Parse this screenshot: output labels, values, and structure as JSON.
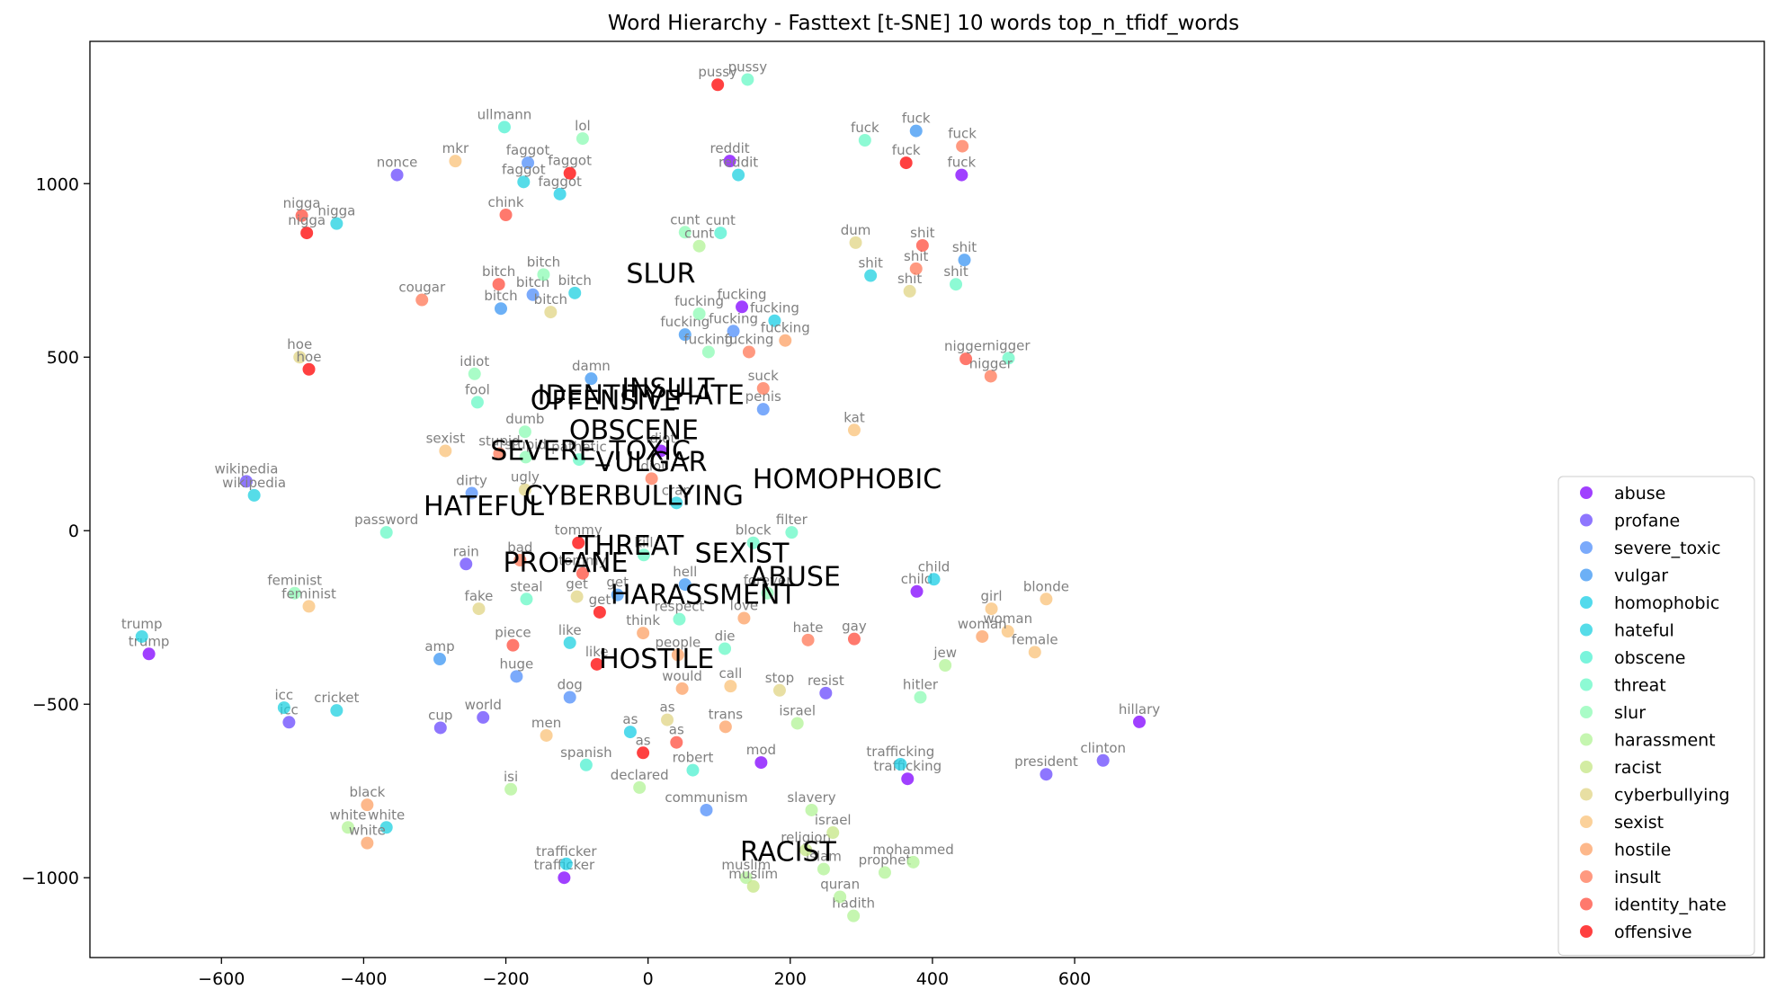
{
  "chart_data": {
    "type": "scatter",
    "title": "Word Hierarchy - Fasttext [t-SNE] 10 words top_n_tfidf_words",
    "xlabel": "",
    "ylabel": "",
    "xlim": [
      -785,
      1570
    ],
    "ylim": [
      -1230,
      1410
    ],
    "x_ticks": [
      -600,
      -400,
      -200,
      0,
      200,
      400,
      600
    ],
    "y_ticks": [
      -1000,
      -500,
      0,
      500,
      1000
    ],
    "x_tick_labels": [
      "−600",
      "−400",
      "−200",
      "0",
      "200",
      "400",
      "600"
    ],
    "y_tick_labels": [
      "−1000",
      "−500",
      "0",
      "500",
      "1000"
    ],
    "grid": false,
    "legend_position": "lower right",
    "point_alpha": 0.75,
    "series": [
      {
        "name": "abuse",
        "color": "#8000ff",
        "points": [
          {
            "x": 115,
            "y": 1065,
            "label": "reddit"
          },
          {
            "x": 132,
            "y": 645,
            "label": "fucking"
          },
          {
            "x": 18,
            "y": 230,
            "label": "idiot"
          },
          {
            "x": 159,
            "y": -668,
            "label": "mod"
          },
          {
            "x": 378,
            "y": -175,
            "label": "child"
          },
          {
            "x": 365,
            "y": -715,
            "label": "trafficking"
          },
          {
            "x": 441,
            "y": 1025,
            "label": "fuck"
          },
          {
            "x": 691,
            "y": -551,
            "label": "hillary"
          },
          {
            "x": -118,
            "y": -1000,
            "label": "trafficker"
          },
          {
            "x": -702,
            "y": -355,
            "label": "trump"
          }
        ]
      },
      {
        "name": "profane",
        "color": "#6848fe",
        "points": [
          {
            "x": -353,
            "y": 1025,
            "label": "nonce"
          },
          {
            "x": -256,
            "y": -96,
            "label": "rain"
          },
          {
            "x": -505,
            "y": -552,
            "label": "icc"
          },
          {
            "x": -292,
            "y": -568,
            "label": "cup"
          },
          {
            "x": -232,
            "y": -538,
            "label": "world"
          },
          {
            "x": 250,
            "y": -468,
            "label": "resist"
          },
          {
            "x": 560,
            "y": -702,
            "label": "president"
          },
          {
            "x": -565,
            "y": 142,
            "label": "wikipedia"
          },
          {
            "x": 640,
            "y": -662,
            "label": "clinton"
          }
        ]
      },
      {
        "name": "severe_toxic",
        "color": "#4f8ef9",
        "points": [
          {
            "x": -169,
            "y": 1060,
            "label": "faggot"
          },
          {
            "x": -162,
            "y": 680,
            "label": "bitch"
          },
          {
            "x": 120,
            "y": 575,
            "label": "fucking"
          },
          {
            "x": 162,
            "y": 350,
            "label": "penis"
          },
          {
            "x": -248,
            "y": 108,
            "label": "dirty"
          },
          {
            "x": -185,
            "y": -420,
            "label": "huge"
          },
          {
            "x": -110,
            "y": -480,
            "label": "dog"
          },
          {
            "x": 82,
            "y": -805,
            "label": "communism"
          }
        ]
      },
      {
        "name": "vulgar",
        "color": "#3b96f3",
        "points": [
          {
            "x": -207,
            "y": 640,
            "label": "bitch"
          },
          {
            "x": 52,
            "y": 565,
            "label": "fucking"
          },
          {
            "x": -43,
            "y": -185,
            "label": "get"
          },
          {
            "x": 52,
            "y": -155,
            "label": "hell"
          },
          {
            "x": -293,
            "y": -370,
            "label": "amp"
          },
          {
            "x": 377,
            "y": 1152,
            "label": "fuck"
          },
          {
            "x": 445,
            "y": 780,
            "label": "shit"
          },
          {
            "x": -80,
            "y": 438,
            "label": "damn"
          }
        ]
      },
      {
        "name": "homophobic",
        "color": "#18cde6",
        "points": [
          {
            "x": -124,
            "y": 970,
            "label": "faggot"
          },
          {
            "x": 178,
            "y": 605,
            "label": "fucking"
          },
          {
            "x": 402,
            "y": -140,
            "label": "child"
          },
          {
            "x": -115,
            "y": -960,
            "label": "trafficker"
          },
          {
            "x": 355,
            "y": -673,
            "label": "trafficking"
          },
          {
            "x": -25,
            "y": -580,
            "label": "as"
          }
        ]
      },
      {
        "name": "hateful",
        "color": "#1ed0e0",
        "points": [
          {
            "x": 127,
            "y": 1025,
            "label": "reddit"
          },
          {
            "x": -438,
            "y": 885,
            "label": "nigga"
          },
          {
            "x": -103,
            "y": 685,
            "label": "bitch"
          },
          {
            "x": -175,
            "y": 1005,
            "label": "faggot"
          },
          {
            "x": 313,
            "y": 735,
            "label": "shit"
          },
          {
            "x": -554,
            "y": 102,
            "label": "wikipedia"
          },
          {
            "x": -438,
            "y": -518,
            "label": "cricket"
          },
          {
            "x": -368,
            "y": -855,
            "label": "white"
          },
          {
            "x": -110,
            "y": -323,
            "label": "like"
          },
          {
            "x": -712,
            "y": -305,
            "label": "trump"
          },
          {
            "x": -512,
            "y": -510,
            "label": "icc"
          },
          {
            "x": 40,
            "y": 80,
            "label": "crap"
          }
        ]
      },
      {
        "name": "obscene",
        "color": "#4df0d0",
        "points": [
          {
            "x": -202,
            "y": 1163,
            "label": "ullmann"
          },
          {
            "x": 102,
            "y": 858,
            "label": "cunt"
          },
          {
            "x": 63,
            "y": -690,
            "label": "robert"
          },
          {
            "x": -87,
            "y": -675,
            "label": "spanish"
          }
        ]
      },
      {
        "name": "threat",
        "color": "#67f8c6",
        "points": [
          {
            "x": 140,
            "y": 1300,
            "label": "pussy"
          },
          {
            "x": 433,
            "y": 710,
            "label": "shit"
          },
          {
            "x": 507,
            "y": 497,
            "label": "nigger"
          },
          {
            "x": 148,
            "y": -35,
            "label": "block"
          },
          {
            "x": 202,
            "y": -5,
            "label": "filter"
          },
          {
            "x": 108,
            "y": -340,
            "label": "die"
          },
          {
            "x": 44,
            "y": -255,
            "label": "respect"
          },
          {
            "x": -171,
            "y": -197,
            "label": "steal"
          },
          {
            "x": -6,
            "y": -70,
            "label": "kill"
          },
          {
            "x": -240,
            "y": 370,
            "label": "fool"
          },
          {
            "x": -368,
            "y": -5,
            "label": "password"
          },
          {
            "x": -97,
            "y": 205,
            "label": "pathetic"
          },
          {
            "x": 305,
            "y": 1125,
            "label": "fuck"
          }
        ]
      },
      {
        "name": "slur",
        "color": "#8cfbb4",
        "points": [
          {
            "x": -92,
            "y": 1130,
            "label": "lol"
          },
          {
            "x": -147,
            "y": 738,
            "label": "bitch"
          },
          {
            "x": 72,
            "y": 625,
            "label": "fucking"
          },
          {
            "x": 52,
            "y": 860,
            "label": "cunt"
          },
          {
            "x": -244,
            "y": 452,
            "label": "idiot"
          },
          {
            "x": -173,
            "y": 285,
            "label": "dumb"
          },
          {
            "x": 85,
            "y": 515,
            "label": "fucking"
          },
          {
            "x": -172,
            "y": 212,
            "label": "stupid"
          },
          {
            "x": 168,
            "y": -180,
            "label": "forever"
          },
          {
            "x": 383,
            "y": -480,
            "label": "hitler"
          },
          {
            "x": -497,
            "y": -180,
            "label": "feminist"
          }
        ]
      },
      {
        "name": "harassment",
        "color": "#b2f396",
        "points": [
          {
            "x": 72,
            "y": 820,
            "label": "cunt"
          },
          {
            "x": 418,
            "y": -388,
            "label": "jew"
          },
          {
            "x": 210,
            "y": -555,
            "label": "israel"
          },
          {
            "x": 230,
            "y": -805,
            "label": "slavery"
          },
          {
            "x": 247,
            "y": -975,
            "label": "islam"
          },
          {
            "x": 289,
            "y": -1110,
            "label": "hadith"
          },
          {
            "x": 270,
            "y": -1055,
            "label": "quran"
          },
          {
            "x": 333,
            "y": -985,
            "label": "prophet"
          },
          {
            "x": 373,
            "y": -955,
            "label": "mohammed"
          },
          {
            "x": -193,
            "y": -745,
            "label": "isi"
          },
          {
            "x": -12,
            "y": -740,
            "label": "declared"
          },
          {
            "x": -422,
            "y": -855,
            "label": "white"
          },
          {
            "x": 138,
            "y": -1000,
            "label": "muslim"
          }
        ]
      },
      {
        "name": "racist",
        "color": "#c4e684",
        "points": [
          {
            "x": 148,
            "y": -1025,
            "label": "muslim"
          },
          {
            "x": 222,
            "y": -920,
            "label": "religion"
          },
          {
            "x": 260,
            "y": -870,
            "label": "israel"
          }
        ]
      },
      {
        "name": "cyberbullying",
        "color": "#e0d484",
        "points": [
          {
            "x": -137,
            "y": 630,
            "label": "bitch"
          },
          {
            "x": -173,
            "y": 118,
            "label": "ugly"
          },
          {
            "x": -238,
            "y": -225,
            "label": "fake"
          },
          {
            "x": -100,
            "y": -190,
            "label": "get"
          },
          {
            "x": 27,
            "y": -545,
            "label": "as"
          },
          {
            "x": 185,
            "y": -460,
            "label": "stop"
          },
          {
            "x": 292,
            "y": 830,
            "label": "dum"
          },
          {
            "x": 368,
            "y": 690,
            "label": "shit"
          },
          {
            "x": -490,
            "y": 500,
            "label": "hoe"
          }
        ]
      },
      {
        "name": "sexist",
        "color": "#fac178",
        "points": [
          {
            "x": -271,
            "y": 1065,
            "label": "mkr"
          },
          {
            "x": -285,
            "y": 230,
            "label": "sexist"
          },
          {
            "x": -477,
            "y": -218,
            "label": "feminist"
          },
          {
            "x": 116,
            "y": -448,
            "label": "call"
          },
          {
            "x": 290,
            "y": 290,
            "label": "kat"
          },
          {
            "x": 483,
            "y": -225,
            "label": "girl"
          },
          {
            "x": 506,
            "y": -290,
            "label": "woman"
          },
          {
            "x": 560,
            "y": -197,
            "label": "blonde"
          },
          {
            "x": 544,
            "y": -350,
            "label": "female"
          },
          {
            "x": -143,
            "y": -590,
            "label": "men"
          }
        ]
      },
      {
        "name": "hostile",
        "color": "#fca064",
        "points": [
          {
            "x": 193,
            "y": 548,
            "label": "fucking"
          },
          {
            "x": 135,
            "y": -252,
            "label": "love"
          },
          {
            "x": 42,
            "y": -358,
            "label": "people"
          },
          {
            "x": 48,
            "y": -455,
            "label": "would"
          },
          {
            "x": 109,
            "y": -565,
            "label": "trans"
          },
          {
            "x": -7,
            "y": -295,
            "label": "think"
          },
          {
            "x": -395,
            "y": -790,
            "label": "black"
          },
          {
            "x": -395,
            "y": -900,
            "label": "white"
          },
          {
            "x": 470,
            "y": -305,
            "label": "woman"
          }
        ]
      },
      {
        "name": "insult",
        "color": "#ff7755",
        "points": [
          {
            "x": -318,
            "y": 665,
            "label": "cougar"
          },
          {
            "x": -209,
            "y": 222,
            "label": "stupid"
          },
          {
            "x": 142,
            "y": 515,
            "label": "fucking"
          },
          {
            "x": 162,
            "y": 410,
            "label": "suck"
          },
          {
            "x": 5,
            "y": 150,
            "label": "idiot"
          },
          {
            "x": -180,
            "y": -85,
            "label": "bad"
          },
          {
            "x": 225,
            "y": -315,
            "label": "hate"
          },
          {
            "x": 482,
            "y": 445,
            "label": "nigger"
          },
          {
            "x": 442,
            "y": 1108,
            "label": "fuck"
          },
          {
            "x": 377,
            "y": 755,
            "label": "shit"
          }
        ]
      },
      {
        "name": "identity_hate",
        "color": "#ff4c3c",
        "points": [
          {
            "x": -487,
            "y": 908,
            "label": "nigga"
          },
          {
            "x": -210,
            "y": 710,
            "label": "bitch"
          },
          {
            "x": -200,
            "y": 910,
            "label": "chink"
          },
          {
            "x": -190,
            "y": -330,
            "label": "piece"
          },
          {
            "x": 290,
            "y": -312,
            "label": "gay"
          },
          {
            "x": 447,
            "y": 495,
            "label": "nigger"
          },
          {
            "x": 386,
            "y": 822,
            "label": "shit"
          },
          {
            "x": 40,
            "y": -610,
            "label": "as"
          },
          {
            "x": -92,
            "y": -123,
            "label": "tommy"
          }
        ]
      },
      {
        "name": "offensive",
        "color": "#ff0000",
        "points": [
          {
            "x": 98,
            "y": 1285,
            "label": "pussy"
          },
          {
            "x": -110,
            "y": 1030,
            "label": "faggot"
          },
          {
            "x": 363,
            "y": 1060,
            "label": "fuck"
          },
          {
            "x": -480,
            "y": 858,
            "label": "nigga"
          },
          {
            "x": -477,
            "y": 465,
            "label": "hoe"
          },
          {
            "x": -98,
            "y": -35,
            "label": "tommy"
          },
          {
            "x": -68,
            "y": -235,
            "label": "get"
          },
          {
            "x": -72,
            "y": -385,
            "label": "like"
          },
          {
            "x": -7,
            "y": -640,
            "label": "as"
          }
        ]
      }
    ],
    "category_labels": [
      {
        "text": "SLUR",
        "x": 18,
        "y": 740
      },
      {
        "text": "INSULT",
        "x": 28,
        "y": 410
      },
      {
        "text": "IDENTITY_HATE",
        "x": -10,
        "y": 390
      },
      {
        "text": "OFFENSIVE",
        "x": -60,
        "y": 375
      },
      {
        "text": "OBSCENE",
        "x": -20,
        "y": 290
      },
      {
        "text": "SEVERE_TOXIC",
        "x": -81,
        "y": 230
      },
      {
        "text": "VULGAR",
        "x": 5,
        "y": 197
      },
      {
        "text": "CYBERBULLYING",
        "x": -20,
        "y": 100
      },
      {
        "text": "HATEFUL",
        "x": -231,
        "y": 70
      },
      {
        "text": "HOMOPHOBIC",
        "x": 280,
        "y": 148
      },
      {
        "text": "THREAT",
        "x": -24,
        "y": -43
      },
      {
        "text": "SEXIST",
        "x": 132,
        "y": -65
      },
      {
        "text": "PROFANE",
        "x": -116,
        "y": -93
      },
      {
        "text": "ABUSE",
        "x": 207,
        "y": -133
      },
      {
        "text": "HARASSMENT",
        "x": 78,
        "y": -185
      },
      {
        "text": "HOSTILE",
        "x": 12,
        "y": -370
      },
      {
        "text": "RACIST",
        "x": 197,
        "y": -925
      }
    ],
    "legend": [
      "abuse",
      "profane",
      "severe_toxic",
      "vulgar",
      "homophobic",
      "hateful",
      "obscene",
      "threat",
      "slur",
      "harassment",
      "racist",
      "cyberbullying",
      "sexist",
      "hostile",
      "insult",
      "identity_hate",
      "offensive"
    ]
  }
}
